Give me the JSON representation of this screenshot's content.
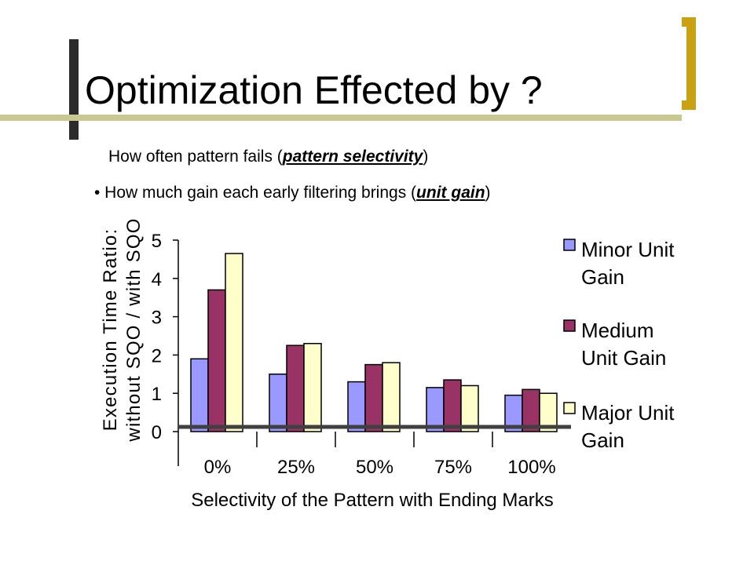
{
  "slide": {
    "title": "Optimization  Effected by ?",
    "bullets": [
      {
        "pre": "How often pattern fails (",
        "emph": "pattern selectivity",
        "post": ")"
      },
      {
        "pre": "• How much gain each early filtering brings (",
        "emph": "unit gain",
        "post": ")"
      }
    ]
  },
  "colors": {
    "bracket_dark": "#2b2b2b",
    "bracket_gold": "#c9a213",
    "title_line": "#c8c890",
    "minor": "#9999ff",
    "medium": "#993366",
    "major": "#ffffcc"
  },
  "chart_data": {
    "type": "bar",
    "title": "",
    "xlabel": "Selectivity of the Pattern with Ending Marks",
    "ylabel_lines": [
      "Execution Time Ratio:",
      "without SQO / with SQO"
    ],
    "categories": [
      "0%",
      "25%",
      "50%",
      "75%",
      "100%"
    ],
    "y_ticks": [
      "0",
      "1",
      "2",
      "3",
      "4",
      "5"
    ],
    "ylim": [
      0,
      5
    ],
    "grid": false,
    "legend_position": "right",
    "series": [
      {
        "name": "Minor Unit Gain",
        "name_lines": [
          "Minor Unit",
          "Gain"
        ],
        "values": [
          1.9,
          1.5,
          1.3,
          1.15,
          0.95
        ],
        "color": "#9999ff"
      },
      {
        "name": "Medium Unit Gain",
        "name_lines": [
          "Medium",
          "Unit Gain"
        ],
        "values": [
          3.7,
          2.25,
          1.75,
          1.35,
          1.1
        ],
        "color": "#993366"
      },
      {
        "name": "Major Unit Gain",
        "name_lines": [
          "Major Unit",
          "Gain"
        ],
        "values": [
          4.65,
          2.3,
          1.8,
          1.2,
          1.0
        ],
        "color": "#ffffcc"
      }
    ]
  }
}
